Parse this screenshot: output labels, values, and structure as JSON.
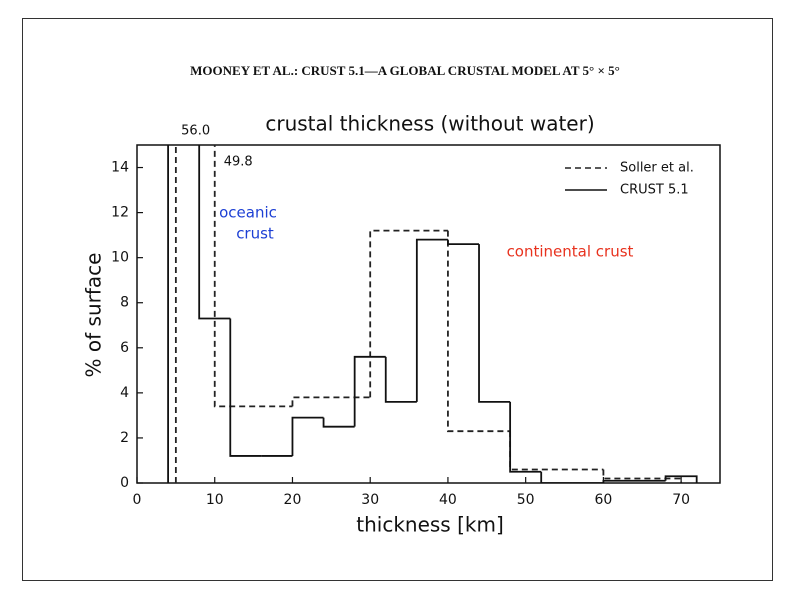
{
  "chart_data": {
    "type": "histogram",
    "header": "MOONEY ET AL.: CRUST 5.1—A GLOBAL CRUSTAL MODEL AT 5° × 5°",
    "title": "crustal thickness (without water)",
    "x_label": "thickness [km]",
    "y_label": "% of surface",
    "xlim": [
      0,
      75
    ],
    "ylim": [
      0,
      15
    ],
    "xticks": [
      0,
      10,
      20,
      30,
      40,
      50,
      60,
      70
    ],
    "yticks": [
      0,
      2,
      4,
      6,
      8,
      10,
      12,
      14
    ],
    "grid": false,
    "legend": "upper right",
    "series": [
      {
        "name": "Soller et al.",
        "color": "#222222",
        "style": "dashed",
        "bins": [
          5,
          10,
          20,
          30,
          40,
          48,
          60,
          70
        ],
        "values": [
          49.8,
          3.4,
          3.8,
          11.2,
          2.3,
          0.6,
          0.2
        ],
        "value_labels": [
          "49.8",
          null,
          null,
          null,
          null,
          null,
          null
        ]
      },
      {
        "name": "CRUST 5.1",
        "color": "#111111",
        "style": "solid",
        "bins": [
          4,
          8,
          12,
          16,
          20,
          24,
          28,
          32,
          36,
          40,
          44,
          48,
          52,
          56,
          60,
          64,
          68,
          72
        ],
        "values": [
          56.0,
          7.3,
          1.2,
          1.2,
          2.9,
          2.5,
          5.6,
          3.6,
          10.8,
          10.6,
          3.6,
          0.5,
          0,
          0,
          0.1,
          0.1,
          0.3
        ],
        "value_labels": [
          "56.0",
          null,
          null,
          null,
          null,
          null,
          null,
          null,
          null,
          null,
          null,
          null,
          null,
          null,
          null,
          null,
          null
        ]
      }
    ],
    "annotations": [
      {
        "text": "oceanic",
        "color": "#1c3fd4"
      },
      {
        "text": "crust",
        "color": "#1c3fd4"
      },
      {
        "text": "continental crust",
        "color": "#e8321e"
      }
    ]
  }
}
